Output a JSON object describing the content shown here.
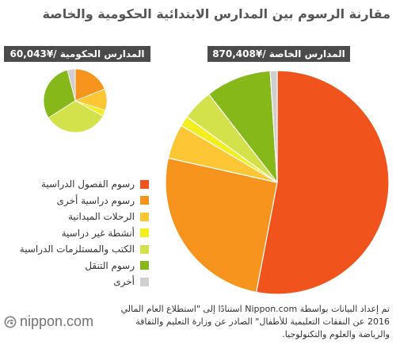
{
  "chart_data": {
    "type": "pie",
    "title": "مقارنة الرسوم بين المدارس الابتدائية الحكومية والخاصة",
    "categories": [
      "رسوم الفصول الدراسية",
      "رسوم دراسية أخرى",
      "الرحلات الميدانية",
      "أنشطة غير دراسية",
      "الكتب والمستلزمات الدراسية",
      "رسوم التنقل",
      "أخرى"
    ],
    "colors": [
      "#f0541c",
      "#f7941e",
      "#fcc634",
      "#f3ee1d",
      "#d3e24a",
      "#86b81a",
      "#cfcfcf"
    ],
    "series": [
      {
        "name": "المدارس الخاصة /¥870,408",
        "values": [
          53,
          25.5,
          5,
          1.5,
          4.5,
          9.5,
          1
        ]
      },
      {
        "name": "المدارس الحكومية /¥60,043",
        "values": [
          0,
          19,
          11,
          3,
          33,
          30,
          4
        ]
      }
    ],
    "legend_position": "left"
  },
  "source_note": {
    "lines": [
      "تم إعداد البيانات بواسطة Nippon.com استنادًا إلى \"استطلاع العام المالي",
      "2016 عن النفقات التعليمية للأطفال\" الصادر عن وزارة التعليم والثقافة",
      "والرياضة والعلوم والتكنولوجيا."
    ]
  },
  "logo": {
    "icon": "nippon-logo-icon",
    "text": "nippon.com"
  }
}
